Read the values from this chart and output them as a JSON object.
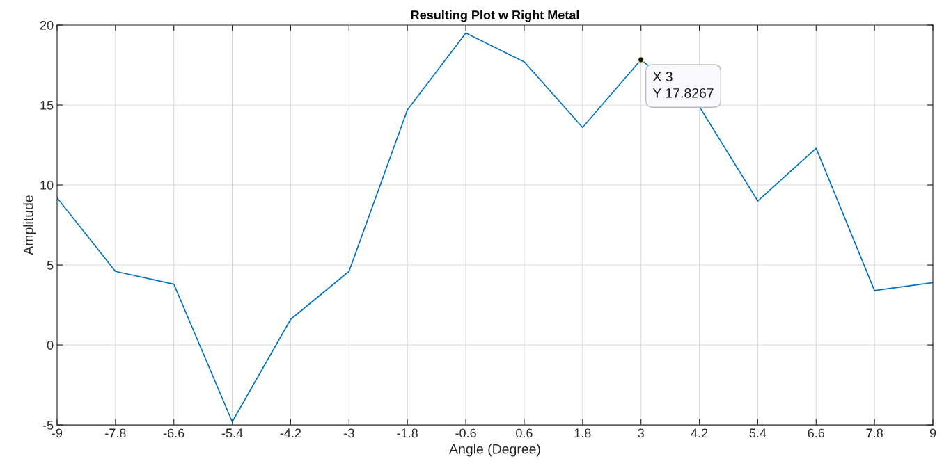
{
  "chart_data": {
    "type": "line",
    "title": "Resulting Plot w Right Metal",
    "xlabel": "Angle (Degree)",
    "ylabel": "Amplitude",
    "x": [
      -9,
      -7.8,
      -6.6,
      -5.4,
      -4.2,
      -3,
      -1.8,
      -0.6,
      0.6,
      1.8,
      3,
      4.2,
      5.4,
      6.6,
      7.8,
      9
    ],
    "series": [
      {
        "color": "#0072bd",
        "values": [
          9.2,
          4.6,
          3.8,
          -4.8,
          1.6,
          4.6,
          14.7,
          19.5,
          17.7,
          13.6,
          17.8267,
          14.9,
          9.0,
          12.3,
          3.4,
          3.9
        ]
      }
    ],
    "xlim": [
      -9,
      9
    ],
    "xticks": [
      -9,
      -7.8,
      -6.6,
      -5.4,
      -4.2,
      -3,
      -1.8,
      -0.6,
      0.6,
      1.8,
      3,
      4.2,
      5.4,
      6.6,
      7.8,
      9
    ],
    "ylim": [
      -5,
      20
    ],
    "yticks": [
      -5,
      0,
      5,
      10,
      15,
      20
    ],
    "grid": true,
    "annotations": [
      {
        "text": "X 3\nY 17.8267",
        "x": 3,
        "y": 17.8267
      }
    ]
  }
}
